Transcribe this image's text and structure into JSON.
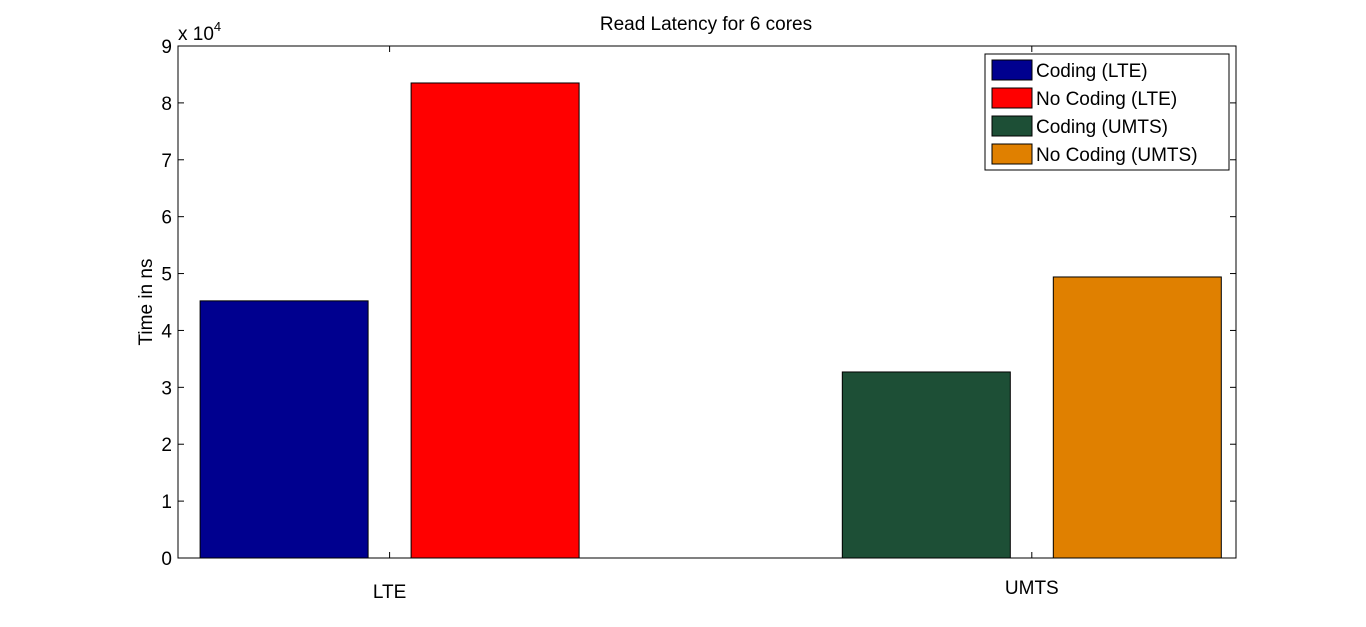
{
  "chart_data": {
    "type": "bar",
    "title": "Read Latency for 6 cores",
    "xlabel": "",
    "ylabel": "Time in ns",
    "y_multiplier": {
      "base": "x 10",
      "exponent": "4"
    },
    "ylim": [
      0,
      90000
    ],
    "y_ticks": [
      {
        "value": 0,
        "label": "0"
      },
      {
        "value": 10000,
        "label": "1"
      },
      {
        "value": 20000,
        "label": "2"
      },
      {
        "value": 30000,
        "label": "3"
      },
      {
        "value": 40000,
        "label": "4"
      },
      {
        "value": 50000,
        "label": "5"
      },
      {
        "value": 60000,
        "label": "6"
      },
      {
        "value": 70000,
        "label": "7"
      },
      {
        "value": 80000,
        "label": "8"
      },
      {
        "value": 90000,
        "label": "9"
      }
    ],
    "categories": [
      "LTE",
      "UMTS"
    ],
    "series": [
      {
        "name": "Coding (LTE)",
        "color": "#00008f",
        "values": [
          45200,
          null
        ]
      },
      {
        "name": "No Coding (LTE)",
        "color": "#ff0000",
        "values": [
          83500,
          null
        ]
      },
      {
        "name": "Coding (UMTS)",
        "color": "#1d4f36",
        "values": [
          null,
          32700
        ]
      },
      {
        "name": "No Coding (UMTS)",
        "color": "#e08000",
        "values": [
          null,
          49400
        ]
      }
    ],
    "grid": false,
    "legend_position": "top-right"
  }
}
